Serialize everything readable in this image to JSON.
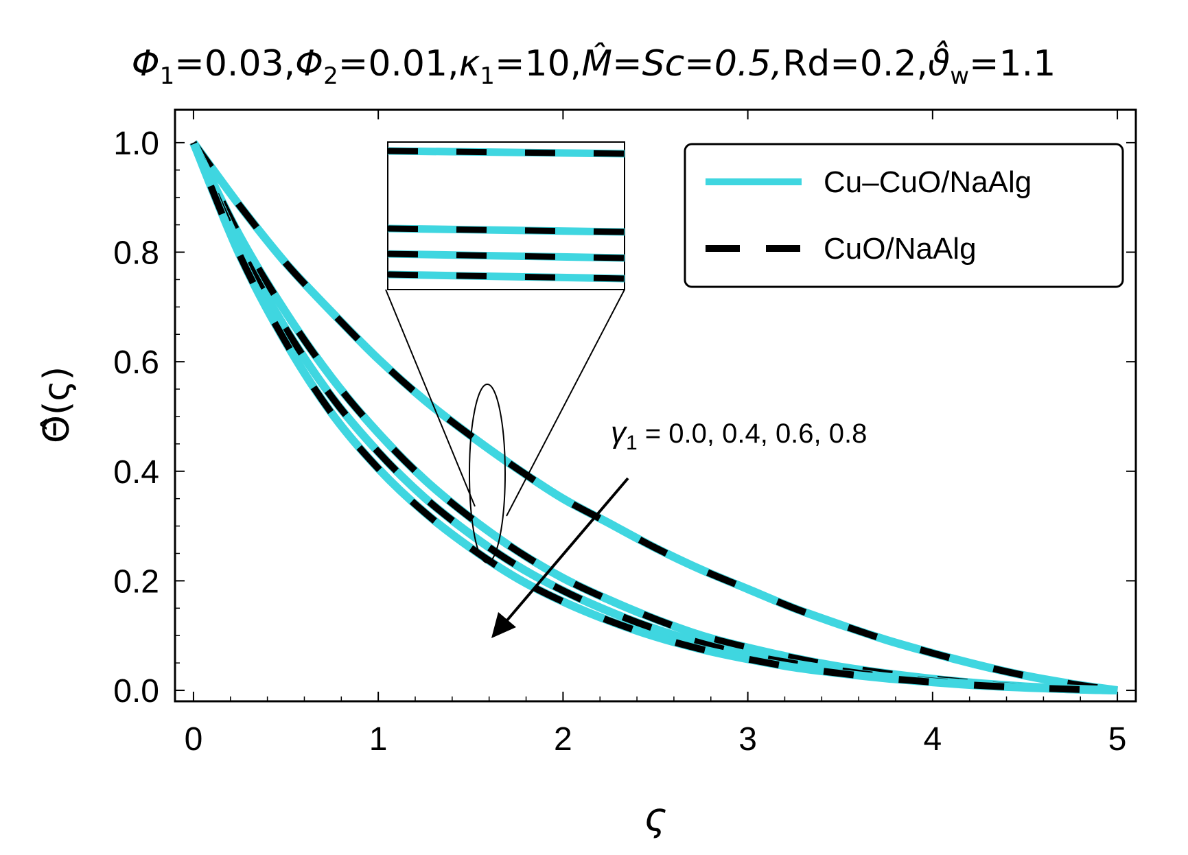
{
  "chart_data": {
    "type": "line",
    "title": {
      "parts": [
        {
          "base": "Φ",
          "sub": "1",
          "rest": "=0.03,"
        },
        {
          "base": "Φ",
          "sub": "2",
          "rest": "=0.01,"
        },
        {
          "base": "κ",
          "sub": "1",
          "rest": "=10,"
        },
        {
          "base": "M̂=Sc=0.5,",
          "sub": "",
          "rest": ""
        },
        {
          "base": "Rd=0.2,",
          "sub": "",
          "rest": ""
        },
        {
          "base": "ϑ̂",
          "sub": "w",
          "rest": "=1.1"
        }
      ]
    },
    "xlabel": "ς",
    "ylabel": "Θ̂(ς)",
    "xlim": [
      -0.1,
      5.1
    ],
    "ylim": [
      -0.02,
      1.06
    ],
    "xticks": [
      "0",
      "1",
      "2",
      "3",
      "4",
      "5"
    ],
    "yticks": [
      "0.0",
      "0.2",
      "0.4",
      "0.6",
      "0.8",
      "1.0"
    ],
    "grid": false,
    "legend": {
      "position": "top-right",
      "entries": [
        {
          "label": "Cu–CuO/NaAlg",
          "color": "#3fd6e0",
          "style": "solid"
        },
        {
          "label": "CuO/NaAlg",
          "color": "#000000",
          "style": "dashed"
        }
      ]
    },
    "annotation": {
      "base": "γ",
      "sub": "1",
      "text": " = 0.0, 0.4, 0.6, 0.8",
      "arrow": "decreasing direction"
    },
    "x": [
      0,
      0.25,
      0.5,
      0.75,
      1.0,
      1.25,
      1.5,
      1.75,
      2.0,
      2.25,
      2.5,
      2.75,
      3.0,
      3.25,
      3.5,
      3.75,
      4.0,
      4.25,
      4.5,
      4.75,
      5.0
    ],
    "series": [
      {
        "gamma1": "0.0",
        "values": [
          1.0,
          0.885,
          0.78,
          0.69,
          0.605,
          0.53,
          0.465,
          0.405,
          0.35,
          0.305,
          0.26,
          0.22,
          0.185,
          0.15,
          0.12,
          0.092,
          0.068,
          0.046,
          0.027,
          0.012,
          0.0
        ]
      },
      {
        "gamma1": "0.4",
        "values": [
          1.0,
          0.83,
          0.69,
          0.57,
          0.47,
          0.385,
          0.315,
          0.255,
          0.205,
          0.165,
          0.13,
          0.1,
          0.078,
          0.059,
          0.043,
          0.031,
          0.021,
          0.013,
          0.007,
          0.003,
          0.0
        ]
      },
      {
        "gamma1": "0.6",
        "values": [
          1.0,
          0.81,
          0.66,
          0.535,
          0.435,
          0.352,
          0.285,
          0.228,
          0.182,
          0.144,
          0.112,
          0.086,
          0.065,
          0.049,
          0.036,
          0.025,
          0.017,
          0.011,
          0.006,
          0.002,
          0.0
        ]
      },
      {
        "gamma1": "0.8",
        "values": [
          1.0,
          0.795,
          0.635,
          0.505,
          0.405,
          0.325,
          0.26,
          0.205,
          0.162,
          0.127,
          0.098,
          0.075,
          0.057,
          0.042,
          0.031,
          0.022,
          0.015,
          0.009,
          0.005,
          0.002,
          0.0
        ]
      }
    ]
  }
}
